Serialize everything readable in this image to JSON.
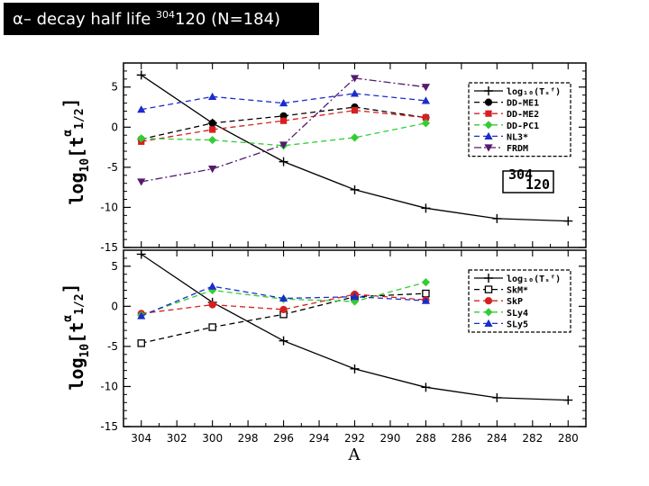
{
  "title": {
    "prefix": "α– decay half life ",
    "mass_superscript": "304",
    "element": "120",
    "suffix": " (N=184)"
  },
  "colors": {
    "black": "#000000",
    "red": "#d62020",
    "green": "#33cc33",
    "blue": "#1a2ccc",
    "purple": "#551a6e"
  },
  "chart_data": [
    {
      "type": "line",
      "panel": "top",
      "ylabel_main": "log",
      "ylabel_sub": "10",
      "ylabel_rest": "[t",
      "ylabel_sup": "α",
      "ylabel_sub2": "1/2",
      "ylabel_end": "]",
      "ylim": [
        -15,
        8
      ],
      "yticks": [
        5,
        0,
        -5,
        -10,
        -15
      ],
      "xlim": [
        305,
        279
      ],
      "inset_label_sup": "304",
      "inset_label": "120",
      "series": [
        {
          "name": "log10(Tsf)",
          "legend": "log₁₀(Tₛᶠ)",
          "color": "#000000",
          "style": "solid",
          "marker": "plus",
          "x": [
            304,
            300,
            296,
            292,
            288,
            284,
            280
          ],
          "y": [
            6.5,
            0.5,
            -4.3,
            -7.8,
            -10.1,
            -11.4,
            -11.7
          ]
        },
        {
          "name": "DD-ME1",
          "legend": "DD-ME1",
          "color": "#000000",
          "style": "dashed",
          "marker": "circle",
          "x": [
            304,
            300,
            296,
            292,
            288
          ],
          "y": [
            -1.5,
            0.5,
            1.4,
            2.5,
            1.2
          ]
        },
        {
          "name": "DD-ME2",
          "legend": "DD-ME2",
          "color": "#d62020",
          "style": "dashed",
          "marker": "square",
          "x": [
            304,
            300,
            296,
            292,
            288
          ],
          "y": [
            -1.8,
            -0.3,
            0.8,
            2.1,
            1.2
          ]
        },
        {
          "name": "DD-PC1",
          "legend": "DD-PC1",
          "color": "#33cc33",
          "style": "dashed",
          "marker": "diamond",
          "x": [
            304,
            300,
            296,
            292,
            288
          ],
          "y": [
            -1.4,
            -1.6,
            -2.3,
            -1.3,
            0.5
          ]
        },
        {
          "name": "NL3*",
          "legend": "NL3*",
          "color": "#1a2ccc",
          "style": "dashed",
          "marker": "triangle",
          "x": [
            304,
            300,
            296,
            292,
            288
          ],
          "y": [
            2.2,
            3.8,
            3.0,
            4.2,
            3.3
          ]
        },
        {
          "name": "FRDM",
          "legend": "FRDM",
          "color": "#551a6e",
          "style": "dashdot",
          "marker": "tridown",
          "x": [
            304,
            300,
            296,
            292,
            288
          ],
          "y": [
            -6.8,
            -5.2,
            -2.2,
            6.1,
            5.0
          ]
        }
      ]
    },
    {
      "type": "line",
      "panel": "bottom",
      "xlabel": "A",
      "ylim": [
        -15,
        7
      ],
      "yticks": [
        5,
        0,
        -5,
        -10,
        -15
      ],
      "xlim": [
        305,
        279
      ],
      "xticks": [
        304,
        302,
        300,
        298,
        296,
        294,
        292,
        290,
        288,
        286,
        284,
        282,
        280
      ],
      "series": [
        {
          "name": "log10(Tsf)",
          "legend": "log₁₀(Tₛᶠ)",
          "color": "#000000",
          "style": "solid",
          "marker": "plus",
          "x": [
            304,
            300,
            296,
            292,
            288,
            284,
            280
          ],
          "y": [
            6.5,
            0.5,
            -4.3,
            -7.8,
            -10.1,
            -11.4,
            -11.7
          ]
        },
        {
          "name": "SkM*",
          "legend": "SkM*",
          "color": "#000000",
          "style": "dashed",
          "marker": "opensquare",
          "x": [
            304,
            300,
            296,
            292,
            288
          ],
          "y": [
            -4.6,
            -2.6,
            -1.0,
            1.2,
            1.6
          ]
        },
        {
          "name": "SkP",
          "legend": "SkP",
          "color": "#d62020",
          "style": "dashed",
          "marker": "circle",
          "x": [
            304,
            300,
            296,
            292,
            288
          ],
          "y": [
            -0.9,
            0.2,
            -0.4,
            1.5,
            0.8
          ]
        },
        {
          "name": "SLy4",
          "legend": "SLy4",
          "color": "#33cc33",
          "style": "dashed",
          "marker": "diamond",
          "x": [
            304,
            300,
            296,
            292,
            288
          ],
          "y": [
            -1.1,
            2.0,
            0.9,
            0.6,
            3.0
          ]
        },
        {
          "name": "SLy5",
          "legend": "SLy5",
          "color": "#1a2ccc",
          "style": "dashed",
          "marker": "triangle",
          "x": [
            304,
            300,
            296,
            292,
            288
          ],
          "y": [
            -1.2,
            2.5,
            1.0,
            1.2,
            0.7
          ]
        }
      ]
    }
  ]
}
